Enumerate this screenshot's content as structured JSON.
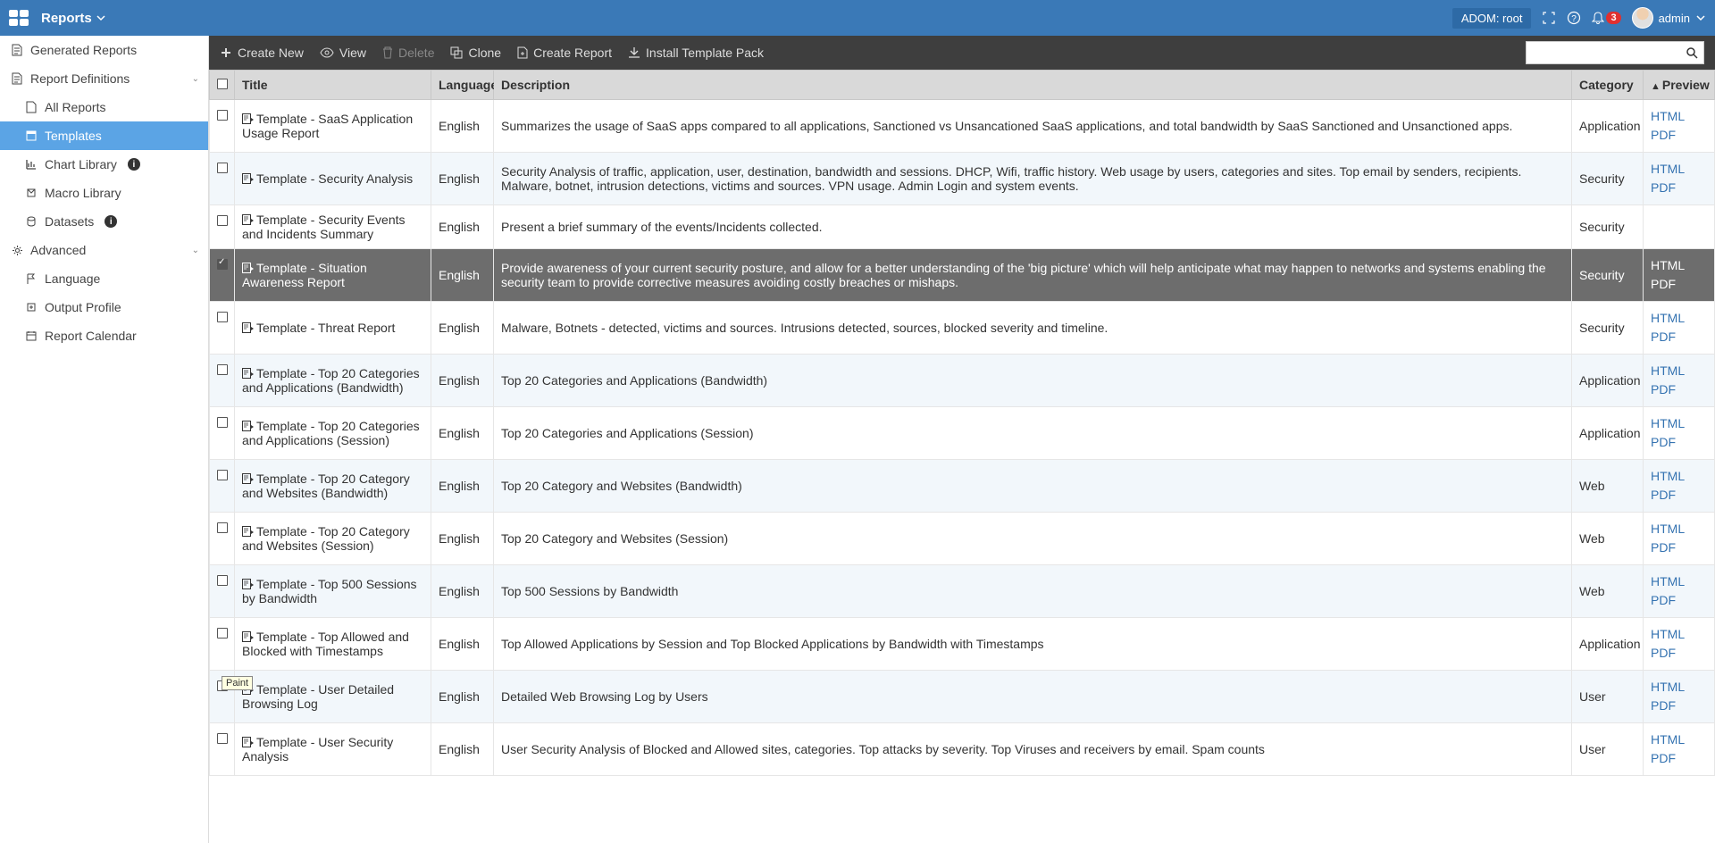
{
  "topbar": {
    "section": "Reports",
    "adom": "ADOM: root",
    "notif_count": "3",
    "user": "admin"
  },
  "sidebar": {
    "generated": "Generated Reports",
    "defs": "Report Definitions",
    "all_reports": "All Reports",
    "templates": "Templates",
    "chart_lib": "Chart Library",
    "macro_lib": "Macro Library",
    "datasets": "Datasets",
    "advanced": "Advanced",
    "language": "Language",
    "output_profile": "Output Profile",
    "report_calendar": "Report Calendar"
  },
  "toolbar": {
    "create_new": "Create New",
    "view": "View",
    "delete": "Delete",
    "clone": "Clone",
    "create_report": "Create Report",
    "install_pack": "Install Template Pack"
  },
  "table": {
    "headers": {
      "title": "Title",
      "language": "Language",
      "description": "Description",
      "category": "Category",
      "preview": "Preview"
    },
    "preview_html": "HTML",
    "preview_pdf": "PDF",
    "rows": [
      {
        "title": "Template - SaaS Application Usage Report",
        "lang": "English",
        "desc": "Summarizes the usage of SaaS apps compared to all applications, Sanctioned vs Unsancationed SaaS applications, and total bandwidth by SaaS Sanctioned and Unsanctioned apps.",
        "cat": "Application",
        "prev": true,
        "sel": false
      },
      {
        "title": "Template - Security Analysis",
        "lang": "English",
        "desc": "Security Analysis of traffic, application, user, destination, bandwidth and sessions. DHCP, Wifi, traffic history. Web usage by users, categories and sites. Top email by senders, recipients. Malware, botnet, intrusion detections, victims and sources. VPN usage. Admin Login and system events.",
        "cat": "Security",
        "prev": true,
        "sel": false
      },
      {
        "title": "Template - Security Events and Incidents Summary",
        "lang": "English",
        "desc": "Present a brief summary of the events/Incidents collected.",
        "cat": "Security",
        "prev": false,
        "sel": false
      },
      {
        "title": "Template - Situation Awareness Report",
        "lang": "English",
        "desc": "Provide awareness of your current security posture, and allow for a better understanding of the 'big picture' which will help anticipate what may happen to networks and systems enabling the security team to provide corrective measures avoiding costly breaches or mishaps.",
        "cat": "Security",
        "prev": true,
        "sel": true
      },
      {
        "title": "Template - Threat Report",
        "lang": "English",
        "desc": "Malware, Botnets - detected, victims and sources. Intrusions detected, sources, blocked severity and timeline.",
        "cat": "Security",
        "prev": true,
        "sel": false
      },
      {
        "title": "Template - Top 20 Categories and Applications (Bandwidth)",
        "lang": "English",
        "desc": "Top 20 Categories and Applications (Bandwidth)",
        "cat": "Application",
        "prev": true,
        "sel": false
      },
      {
        "title": "Template - Top 20 Categories and Applications (Session)",
        "lang": "English",
        "desc": "Top 20 Categories and Applications (Session)",
        "cat": "Application",
        "prev": true,
        "sel": false
      },
      {
        "title": "Template - Top 20 Category and Websites (Bandwidth)",
        "lang": "English",
        "desc": "Top 20 Category and Websites (Bandwidth)",
        "cat": "Web",
        "prev": true,
        "sel": false
      },
      {
        "title": "Template - Top 20 Category and Websites (Session)",
        "lang": "English",
        "desc": "Top 20 Category and Websites (Session)",
        "cat": "Web",
        "prev": true,
        "sel": false
      },
      {
        "title": "Template - Top 500 Sessions by Bandwidth",
        "lang": "English",
        "desc": "Top 500 Sessions by Bandwidth",
        "cat": "Web",
        "prev": true,
        "sel": false
      },
      {
        "title": "Template - Top Allowed and Blocked with Timestamps",
        "lang": "English",
        "desc": "Top Allowed Applications by Session and Top Blocked Applications by Bandwidth with Timestamps",
        "cat": "Application",
        "prev": true,
        "sel": false
      },
      {
        "title": "Template - User Detailed Browsing Log",
        "lang": "English",
        "desc": "Detailed Web Browsing Log by Users",
        "cat": "User",
        "prev": true,
        "sel": false
      },
      {
        "title": "Template - User Security Analysis",
        "lang": "English",
        "desc": "User Security Analysis of Blocked and Allowed sites, categories. Top attacks by severity. Top Viruses and receivers by email. Spam counts",
        "cat": "User",
        "prev": true,
        "sel": false
      }
    ]
  },
  "tooltip": "Paint",
  "style": {
    "topbar_bg": "#3a79b7",
    "toolbar_bg": "#3e3e3e",
    "sidebar_active_bg": "#5ba4e5",
    "row_alt_bg": "#f2f7fb",
    "row_sel_bg": "#6d6d6d",
    "link_color": "#3573b1",
    "header_bg": "#d9d9d9"
  }
}
